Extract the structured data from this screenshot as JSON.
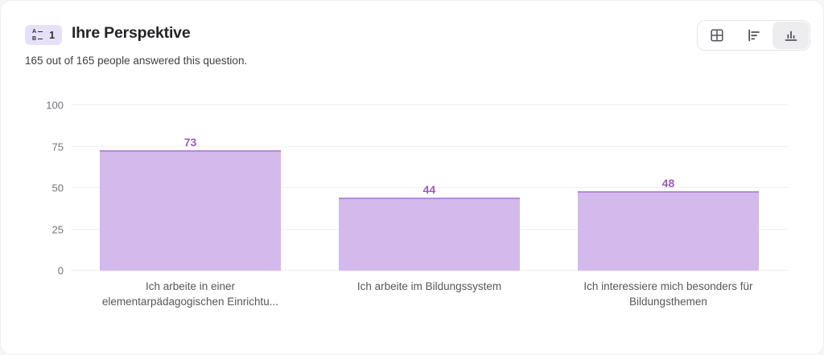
{
  "header": {
    "badge": {
      "number": "1",
      "icon_letters": [
        "A",
        "B"
      ]
    },
    "title": "Ihre Perspektive",
    "subtitle": "165 out of 165 people answered this question."
  },
  "view_toggle": {
    "options": [
      {
        "id": "table-view",
        "icon": "table-icon",
        "selected": false
      },
      {
        "id": "horizontal-bar-view",
        "icon": "bar-chart-horizontal-icon",
        "selected": false
      },
      {
        "id": "vertical-bar-view",
        "icon": "bar-chart-vertical-icon",
        "selected": true
      }
    ]
  },
  "chart_data": {
    "type": "bar",
    "categories": [
      "Ich arbeite in einer elementarpädagogischen Einrichtu...",
      "Ich arbeite im Bildungssystem",
      "Ich interessiere mich besonders für Bildungsthemen"
    ],
    "values": [
      73,
      44,
      48
    ],
    "title": "",
    "xlabel": "",
    "ylabel": "",
    "ylim": [
      0,
      100
    ],
    "yticks": [
      0,
      25,
      50,
      75,
      100
    ],
    "grid": true,
    "legend": false,
    "value_labels_shown": true
  },
  "colors": {
    "bar_fill": "#d4baec",
    "bar_top_border": "#b48bd9",
    "value_label": "#9d5bc2",
    "badge_bg": "#e6e1f8",
    "gridline": "#f0f0f2"
  }
}
